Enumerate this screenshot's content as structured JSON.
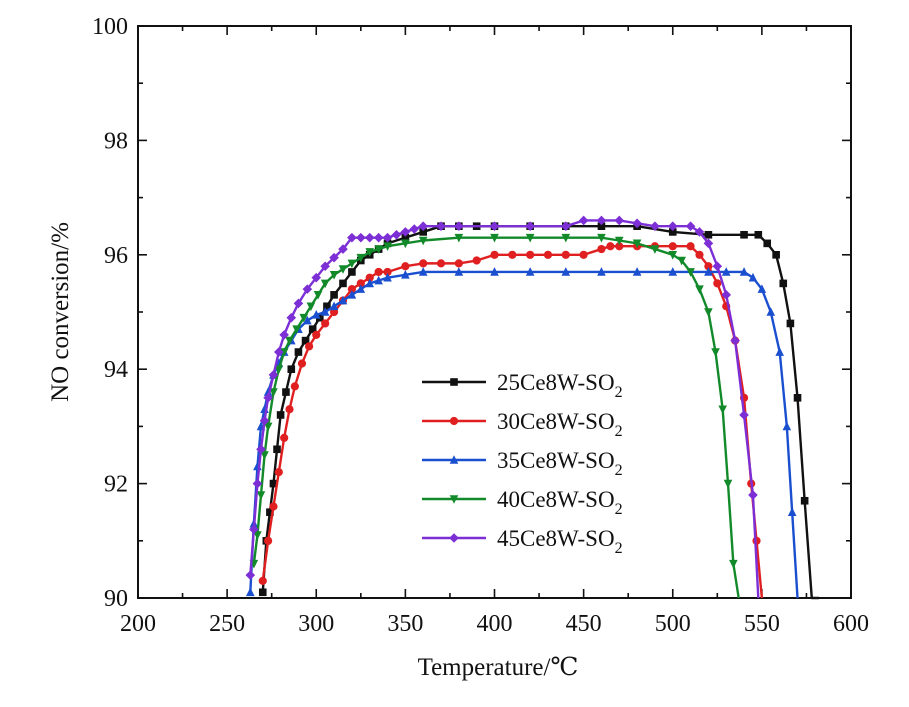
{
  "chart_data": {
    "type": "line",
    "title": "",
    "xlabel": "Temperature/℃",
    "ylabel": "NO conversion/%",
    "xlim": [
      200,
      600
    ],
    "ylim": [
      90,
      100
    ],
    "xticks": [
      "200",
      "250",
      "300",
      "350",
      "400",
      "450",
      "500",
      "550",
      "600"
    ],
    "yticks": [
      "90",
      "92",
      "94",
      "96",
      "98",
      "100"
    ],
    "grid": false,
    "legend_position": "center-right",
    "series": [
      {
        "name": "25Ce8W-SO",
        "sub": "2",
        "color": "#111111",
        "marker": "square",
        "x": [
          270,
          272,
          274,
          276,
          278,
          280,
          283,
          286,
          290,
          294,
          298,
          302,
          306,
          310,
          315,
          320,
          325,
          330,
          335,
          340,
          350,
          360,
          370,
          380,
          390,
          400,
          420,
          440,
          460,
          480,
          500,
          520,
          540,
          548,
          553,
          558,
          562,
          566,
          570,
          574,
          578,
          582
        ],
        "y": [
          90.1,
          91.0,
          91.5,
          92.0,
          92.6,
          93.2,
          93.6,
          94.0,
          94.3,
          94.5,
          94.7,
          94.9,
          95.1,
          95.3,
          95.5,
          95.7,
          95.9,
          96.0,
          96.1,
          96.2,
          96.3,
          96.4,
          96.5,
          96.5,
          96.5,
          96.5,
          96.5,
          96.5,
          96.5,
          96.5,
          96.4,
          96.35,
          96.35,
          96.35,
          96.2,
          96.0,
          95.5,
          94.8,
          93.5,
          91.7,
          90.0,
          90.0
        ]
      },
      {
        "name": "30Ce8W-SO",
        "sub": "2",
        "color": "#e02020",
        "marker": "circle",
        "x": [
          270,
          273,
          276,
          279,
          282,
          285,
          288,
          292,
          296,
          300,
          305,
          310,
          315,
          320,
          325,
          330,
          335,
          340,
          350,
          360,
          370,
          380,
          390,
          400,
          410,
          420,
          430,
          440,
          450,
          460,
          465,
          470,
          480,
          490,
          500,
          510,
          515,
          520,
          525,
          530,
          535,
          540,
          544,
          547,
          550
        ],
        "y": [
          90.3,
          91.0,
          91.6,
          92.2,
          92.8,
          93.3,
          93.7,
          94.1,
          94.4,
          94.6,
          94.8,
          95.0,
          95.2,
          95.4,
          95.5,
          95.6,
          95.7,
          95.7,
          95.8,
          95.85,
          95.85,
          95.85,
          95.9,
          96.0,
          96.0,
          96.0,
          96.0,
          96.0,
          96.0,
          96.1,
          96.15,
          96.15,
          96.15,
          96.15,
          96.15,
          96.15,
          96.0,
          95.8,
          95.5,
          95.1,
          94.5,
          93.5,
          92.0,
          91.0,
          90.0
        ]
      },
      {
        "name": "35Ce8W-SO",
        "sub": "2",
        "color": "#1a4fd0",
        "marker": "triangle-up",
        "x": [
          263,
          265,
          267,
          269,
          271,
          273,
          276,
          279,
          282,
          286,
          290,
          295,
          300,
          305,
          310,
          315,
          320,
          325,
          330,
          335,
          340,
          350,
          360,
          380,
          400,
          420,
          440,
          460,
          480,
          500,
          520,
          530,
          540,
          545,
          550,
          555,
          560,
          564,
          567,
          570
        ],
        "y": [
          90.1,
          91.3,
          92.3,
          93.0,
          93.3,
          93.6,
          93.9,
          94.1,
          94.3,
          94.5,
          94.7,
          94.85,
          94.95,
          95.0,
          95.1,
          95.2,
          95.3,
          95.4,
          95.5,
          95.55,
          95.6,
          95.65,
          95.7,
          95.7,
          95.7,
          95.7,
          95.7,
          95.7,
          95.7,
          95.7,
          95.7,
          95.7,
          95.7,
          95.6,
          95.4,
          95.0,
          94.3,
          93.0,
          91.5,
          90.0
        ]
      },
      {
        "name": "40Ce8W-SO",
        "sub": "2",
        "color": "#138a2a",
        "marker": "triangle-down",
        "x": [
          265,
          267,
          269,
          271,
          273,
          276,
          279,
          282,
          285,
          289,
          293,
          297,
          301,
          305,
          310,
          315,
          320,
          325,
          330,
          335,
          340,
          350,
          360,
          380,
          400,
          420,
          440,
          460,
          470,
          480,
          490,
          500,
          505,
          510,
          515,
          520,
          524,
          528,
          531,
          534,
          537
        ],
        "y": [
          90.6,
          91.1,
          91.8,
          92.5,
          93.0,
          93.6,
          94.0,
          94.3,
          94.5,
          94.7,
          94.9,
          95.1,
          95.3,
          95.5,
          95.65,
          95.75,
          95.85,
          95.95,
          96.05,
          96.1,
          96.15,
          96.2,
          96.25,
          96.3,
          96.3,
          96.3,
          96.3,
          96.3,
          96.25,
          96.2,
          96.1,
          96.0,
          95.9,
          95.7,
          95.4,
          95.0,
          94.3,
          93.3,
          92.0,
          90.6,
          90.0
        ]
      },
      {
        "name": "45Ce8W-SO",
        "sub": "2",
        "color": "#7d2fd6",
        "marker": "diamond",
        "x": [
          263,
          265,
          267,
          269,
          271,
          273,
          276,
          279,
          282,
          286,
          290,
          295,
          300,
          305,
          310,
          315,
          320,
          325,
          330,
          335,
          340,
          345,
          350,
          355,
          360,
          370,
          380,
          400,
          420,
          440,
          450,
          460,
          470,
          480,
          490,
          500,
          510,
          515,
          520,
          525,
          530,
          535,
          540,
          545,
          548
        ],
        "y": [
          90.4,
          91.2,
          92.0,
          92.6,
          93.1,
          93.5,
          93.9,
          94.3,
          94.6,
          94.9,
          95.15,
          95.4,
          95.6,
          95.8,
          95.95,
          96.1,
          96.3,
          96.3,
          96.3,
          96.3,
          96.3,
          96.35,
          96.4,
          96.45,
          96.5,
          96.5,
          96.5,
          96.5,
          96.5,
          96.5,
          96.6,
          96.6,
          96.6,
          96.55,
          96.5,
          96.5,
          96.5,
          96.4,
          96.2,
          95.8,
          95.3,
          94.5,
          93.2,
          91.8,
          90.0
        ]
      }
    ]
  }
}
